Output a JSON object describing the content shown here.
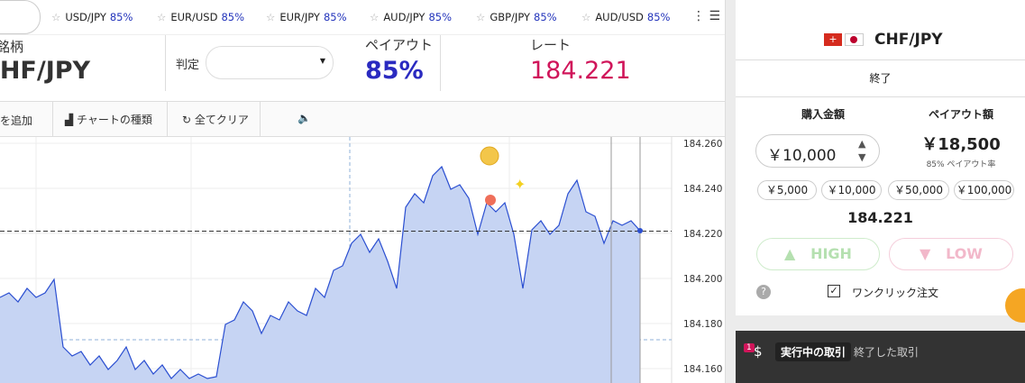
{
  "tickers": [
    {
      "pair": "USD/JPY",
      "payout": "85%"
    },
    {
      "pair": "EUR/USD",
      "payout": "85%"
    },
    {
      "pair": "EUR/JPY",
      "payout": "85%"
    },
    {
      "pair": "AUD/JPY",
      "payout": "85%"
    },
    {
      "pair": "GBP/JPY",
      "payout": "85%"
    },
    {
      "pair": "AUD/USD",
      "payout": "85%"
    }
  ],
  "header": {
    "symbol_label": "銘柄",
    "symbol": "CHF/JPY",
    "judgment_label": "判定",
    "payout_label": "ペイアウト",
    "payout": "85%",
    "rate_label": "レート",
    "rate": "184.221"
  },
  "toolbar": {
    "add": "を追加",
    "chart_type": "チャートの種類",
    "clear_all": "全てクリア"
  },
  "chart": {
    "type": "area",
    "color": "#2b4fd1",
    "fill": "#c6d4f3",
    "ylim": [
      184.154,
      184.264
    ],
    "yticks": [
      {
        "value": 184.16,
        "label": "184.160"
      },
      {
        "value": 184.18,
        "label": "184.180"
      },
      {
        "value": 184.2,
        "label": "184.200"
      },
      {
        "value": 184.22,
        "label": "184.220"
      },
      {
        "value": 184.24,
        "label": "184.240"
      },
      {
        "value": 184.26,
        "label": "184.260"
      }
    ],
    "current": 184.221,
    "values": [
      184.1916,
      184.1936,
      184.1896,
      184.1956,
      184.1916,
      184.1936,
      184.1996,
      184.1696,
      184.1656,
      184.1676,
      184.1616,
      184.1656,
      184.1596,
      184.1636,
      184.1696,
      184.1596,
      184.1636,
      184.1576,
      184.1616,
      184.1556,
      184.1596,
      184.1556,
      184.1576,
      184.1556,
      184.1564,
      184.1796,
      184.1816,
      184.1896,
      184.1856,
      184.1756,
      184.1836,
      184.1816,
      184.1896,
      184.1856,
      184.1836,
      184.1956,
      184.1916,
      184.2036,
      184.2056,
      184.2156,
      184.2196,
      184.2116,
      184.2176,
      184.2076,
      184.1956,
      184.2316,
      184.2376,
      184.2336,
      184.2456,
      184.2496,
      184.2396,
      184.2416,
      184.2356,
      184.2196,
      184.2336,
      184.2296,
      184.2336,
      184.2196,
      184.1956,
      184.2216,
      184.2256,
      184.2196,
      184.2236,
      184.2376,
      184.2436,
      184.2296,
      184.2276,
      184.2156,
      184.2256,
      184.2236,
      184.2256,
      184.2212
    ]
  },
  "panel": {
    "pair": "CHF/JPY",
    "status": "終了",
    "purchase_label": "購入金額",
    "amount": "￥10,000",
    "payout_label": "ペイアウト額",
    "payout_amount": "￥18,500",
    "payout_rate": "85% ペイアウト率",
    "presets": [
      "￥5,000",
      "￥10,000",
      "￥50,000",
      "￥100,000"
    ],
    "rate": "184.221",
    "high": "HIGH",
    "low": "LOW",
    "one_click": "ワンクリック注文"
  },
  "trades": {
    "badge": "1",
    "active_tab": "実行中の取引",
    "closed_tab": "終了した取引"
  }
}
